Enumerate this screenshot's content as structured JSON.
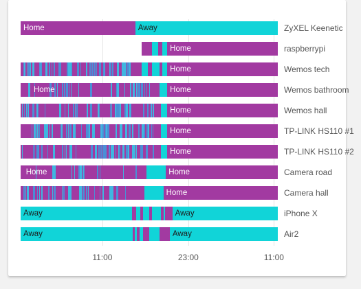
{
  "colors": {
    "home": "#a23aa1",
    "away": "#11d4d8",
    "background": "#f2f2f2",
    "card": "#ffffff"
  },
  "timeline": {
    "axis_ticks": [
      "11:00",
      "23:00",
      "11:00"
    ],
    "tick_fractions": [
      0.318,
      0.652,
      0.985
    ],
    "start_fraction_hidden_rows": 0.47,
    "rows": [
      {
        "name": "ZyXEL Keenetic",
        "segments": [
          {
            "state": "home",
            "from": 0.0,
            "to": 0.446,
            "label": "Home"
          },
          {
            "state": "away",
            "from": 0.446,
            "to": 1.0,
            "label": "Away"
          }
        ]
      },
      {
        "name": "raspberrypi",
        "segments": [
          {
            "state": "home",
            "from": 0.47,
            "to": 0.51
          },
          {
            "state": "away",
            "from": 0.51,
            "to": 0.535
          },
          {
            "state": "home",
            "from": 0.535,
            "to": 0.55
          },
          {
            "state": "away",
            "from": 0.55,
            "to": 0.57
          },
          {
            "state": "home",
            "from": 0.57,
            "to": 1.0,
            "label": "Home"
          }
        ]
      },
      {
        "name": "Wemos tech",
        "segments": [
          {
            "state": "home",
            "from": 0.0,
            "to": 0.445,
            "flicker": 68,
            "seed": 3
          },
          {
            "state": "home",
            "from": 0.445,
            "to": 0.47
          },
          {
            "state": "away",
            "from": 0.47,
            "to": 0.495
          },
          {
            "state": "home",
            "from": 0.495,
            "to": 0.51
          },
          {
            "state": "away",
            "from": 0.51,
            "to": 0.54
          },
          {
            "state": "home",
            "from": 0.54,
            "to": 0.55
          },
          {
            "state": "away",
            "from": 0.55,
            "to": 0.57
          },
          {
            "state": "home",
            "from": 0.57,
            "to": 1.0,
            "label": "Home"
          }
        ]
      },
      {
        "name": "Wemos bathroom",
        "segments": [
          {
            "state": "home",
            "from": 0.0,
            "to": 0.4,
            "flicker": 22,
            "seed": 7,
            "label": "Home",
            "label_at": 0.04
          },
          {
            "state": "home",
            "from": 0.4,
            "to": 0.51,
            "flicker": 10,
            "seed": 11
          },
          {
            "state": "home",
            "from": 0.51,
            "to": 0.54
          },
          {
            "state": "away",
            "from": 0.54,
            "to": 0.57
          },
          {
            "state": "home",
            "from": 0.57,
            "to": 1.0,
            "label": "Home"
          }
        ]
      },
      {
        "name": "Wemos hall",
        "segments": [
          {
            "state": "home",
            "from": 0.0,
            "to": 0.52,
            "flicker": 40,
            "seed": 13
          },
          {
            "state": "home",
            "from": 0.52,
            "to": 0.545
          },
          {
            "state": "away",
            "from": 0.545,
            "to": 0.57
          },
          {
            "state": "home",
            "from": 0.57,
            "to": 1.0,
            "label": "Home"
          }
        ]
      },
      {
        "name": "TP-LINK HS110 #1",
        "segments": [
          {
            "state": "home",
            "from": 0.0,
            "to": 0.52,
            "flicker": 56,
            "seed": 17
          },
          {
            "state": "home",
            "from": 0.52,
            "to": 0.545
          },
          {
            "state": "away",
            "from": 0.545,
            "to": 0.57
          },
          {
            "state": "home",
            "from": 0.57,
            "to": 1.0,
            "label": "Home"
          }
        ]
      },
      {
        "name": "TP-LINK HS110 #2",
        "segments": [
          {
            "state": "home",
            "from": 0.0,
            "to": 0.52,
            "flicker": 44,
            "seed": 23
          },
          {
            "state": "home",
            "from": 0.52,
            "to": 0.545
          },
          {
            "state": "away",
            "from": 0.545,
            "to": 0.57
          },
          {
            "state": "home",
            "from": 0.57,
            "to": 1.0,
            "label": "Home"
          }
        ]
      },
      {
        "name": "Camera road",
        "segments": [
          {
            "state": "home",
            "from": 0.0,
            "to": 0.47,
            "flicker": 14,
            "seed": 29,
            "label": "Home",
            "label_at": 0.01
          },
          {
            "state": "home",
            "from": 0.47,
            "to": 0.49
          },
          {
            "state": "away",
            "from": 0.49,
            "to": 0.565
          },
          {
            "state": "home",
            "from": 0.565,
            "to": 1.0,
            "label": "Home"
          }
        ]
      },
      {
        "name": "Camera hall",
        "segments": [
          {
            "state": "home",
            "from": 0.0,
            "to": 0.42,
            "flicker": 30,
            "seed": 31
          },
          {
            "state": "home",
            "from": 0.42,
            "to": 0.48
          },
          {
            "state": "away",
            "from": 0.48,
            "to": 0.555
          },
          {
            "state": "home",
            "from": 0.555,
            "to": 1.0,
            "label": "Home"
          }
        ]
      },
      {
        "name": "iPhone X",
        "segments": [
          {
            "state": "away",
            "from": 0.0,
            "to": 0.433,
            "label": "Away"
          },
          {
            "state": "home",
            "from": 0.433,
            "to": 0.45
          },
          {
            "state": "away",
            "from": 0.45,
            "to": 0.465
          },
          {
            "state": "home",
            "from": 0.465,
            "to": 0.475
          },
          {
            "state": "away",
            "from": 0.475,
            "to": 0.5
          },
          {
            "state": "home",
            "from": 0.5,
            "to": 0.51
          },
          {
            "state": "away",
            "from": 0.51,
            "to": 0.545
          },
          {
            "state": "home",
            "from": 0.545,
            "to": 0.555
          },
          {
            "state": "away",
            "from": 0.555,
            "to": 0.562
          },
          {
            "state": "home",
            "from": 0.562,
            "to": 0.59
          },
          {
            "state": "away",
            "from": 0.59,
            "to": 1.0,
            "label": "Away"
          }
        ]
      },
      {
        "name": "Air2",
        "segments": [
          {
            "state": "away",
            "from": 0.0,
            "to": 0.435,
            "label": "Away"
          },
          {
            "state": "home",
            "from": 0.435,
            "to": 0.445
          },
          {
            "state": "away",
            "from": 0.445,
            "to": 0.452
          },
          {
            "state": "home",
            "from": 0.452,
            "to": 0.462
          },
          {
            "state": "away",
            "from": 0.462,
            "to": 0.475
          },
          {
            "state": "home",
            "from": 0.475,
            "to": 0.5
          },
          {
            "state": "away",
            "from": 0.5,
            "to": 0.54
          },
          {
            "state": "home",
            "from": 0.54,
            "to": 0.58
          },
          {
            "state": "away",
            "from": 0.58,
            "to": 1.0,
            "label": "Away"
          }
        ]
      }
    ]
  }
}
